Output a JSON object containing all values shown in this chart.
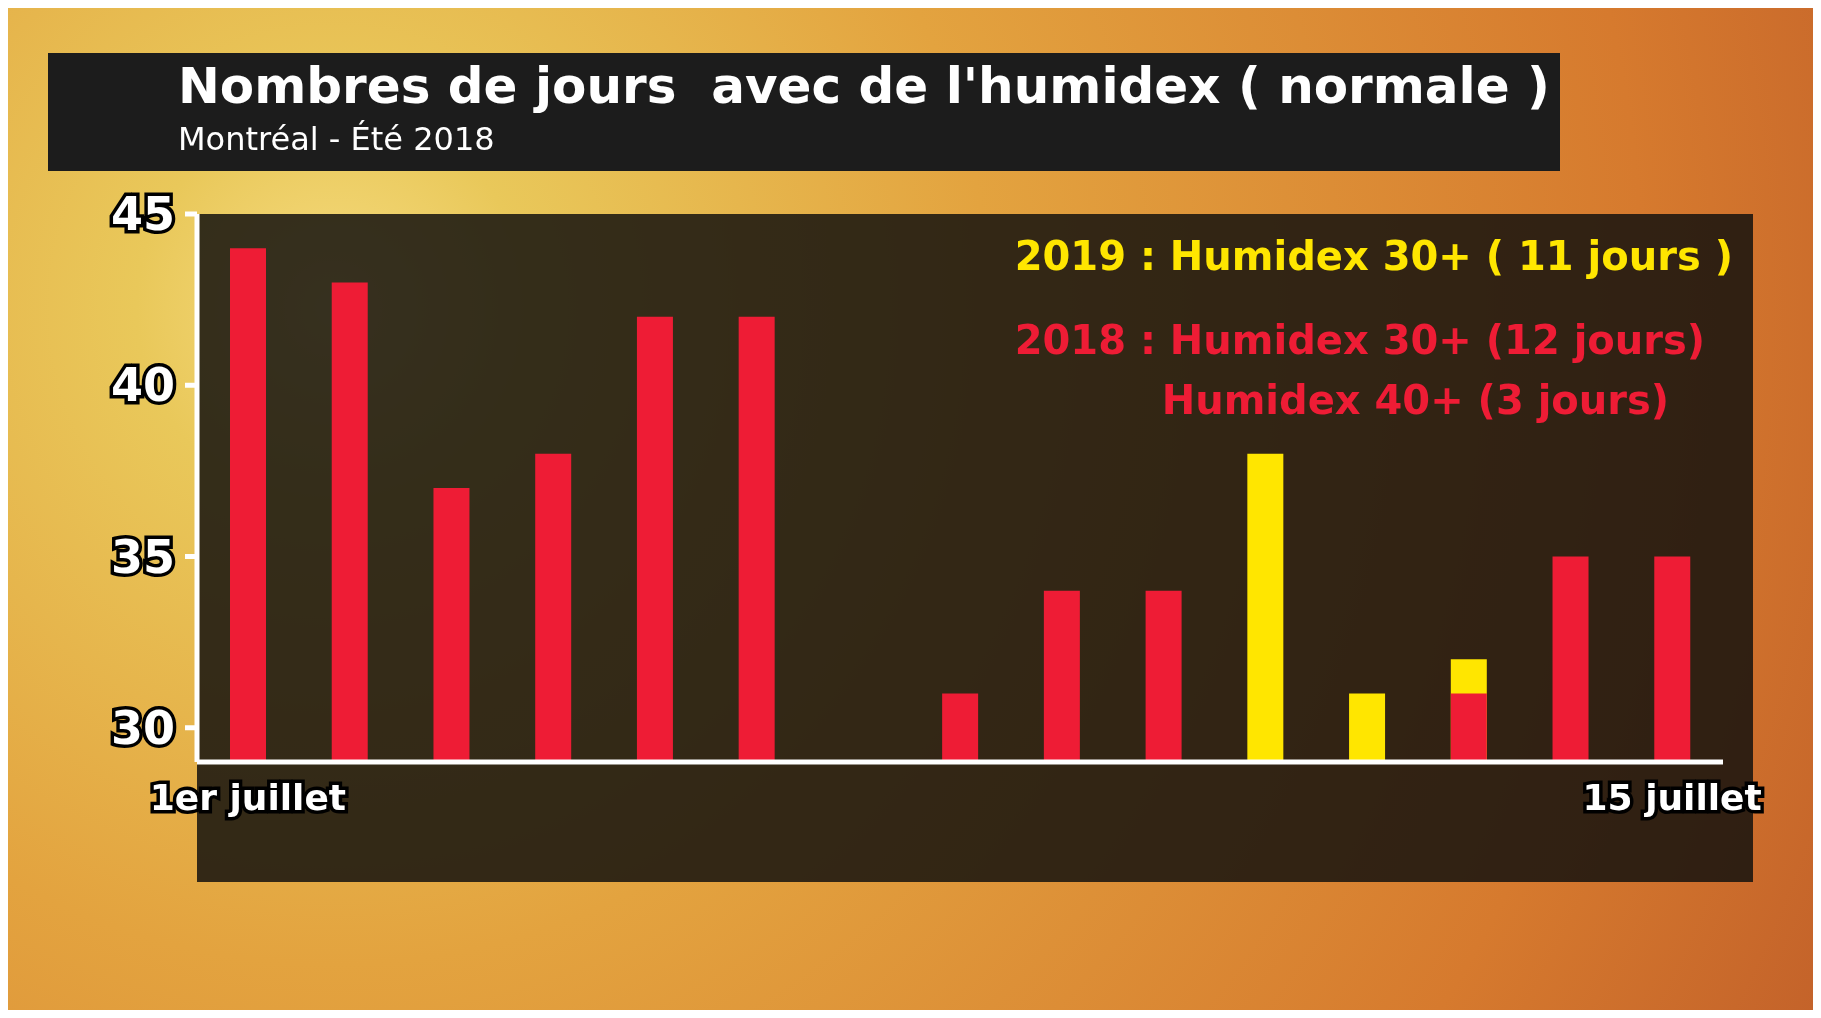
{
  "chart_data": {
    "type": "bar",
    "title": "Nombres de jours  avec de l'humidex ( normale )",
    "subtitle": "Montréal - Été 2018",
    "categories": [
      "1er juillet",
      null,
      null,
      null,
      null,
      null,
      null,
      null,
      null,
      null,
      null,
      null,
      null,
      null,
      "15 juillet"
    ],
    "series": [
      {
        "name": "2019 : Humidex 30+ ( 11 jours )",
        "color": "#ffe600",
        "values": [
          null,
          null,
          null,
          null,
          null,
          null,
          null,
          null,
          null,
          null,
          38,
          31,
          32,
          null,
          null
        ]
      },
      {
        "name": "2018 : Humidex 30+ (12 jours)",
        "color": "#ee1c35",
        "values": [
          44,
          43,
          37,
          38,
          42,
          42,
          null,
          31,
          34,
          34,
          null,
          null,
          31,
          35,
          35
        ]
      }
    ],
    "ylim": [
      29,
      45
    ],
    "yticks": [
      30,
      35,
      40,
      45
    ],
    "grid": false,
    "legend": "top right",
    "annotations": [
      {
        "text": "Humidex 40+ (3 jours)"
      }
    ]
  }
}
